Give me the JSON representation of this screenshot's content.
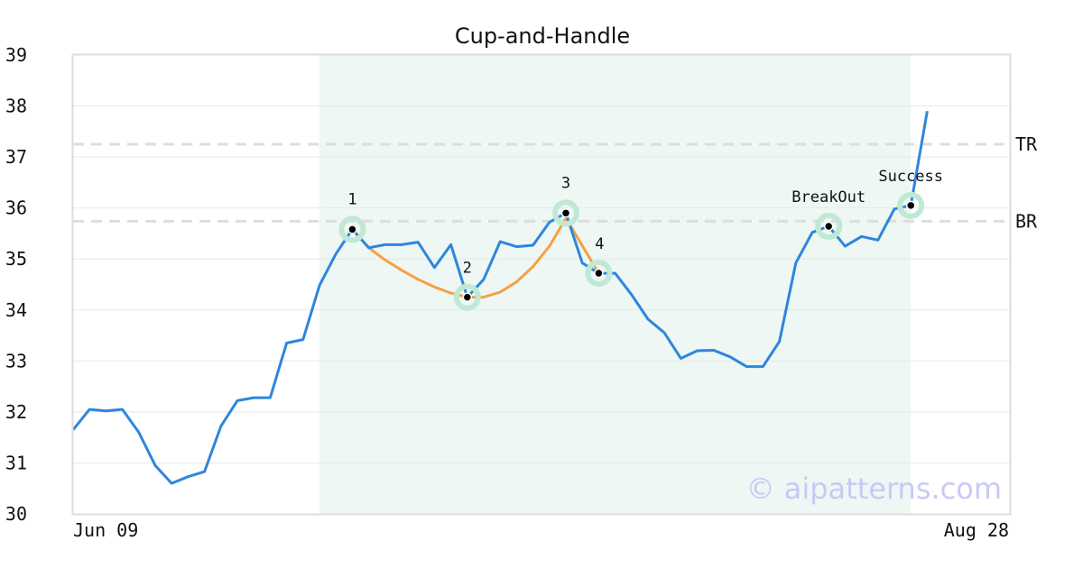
{
  "chart_data": {
    "type": "line",
    "title": "Cup-and-Handle",
    "xlabel": "",
    "ylabel": "",
    "x_tick_labels": [
      "Jun 09",
      "Aug 28"
    ],
    "y_ticks": [
      30,
      31,
      32,
      33,
      34,
      35,
      36,
      37,
      38,
      39
    ],
    "ylim": [
      30,
      39
    ],
    "grid": "horizontal",
    "series": [
      {
        "color": "#2e86de",
        "values": [
          31.65,
          32.05,
          32.02,
          32.05,
          31.6,
          30.95,
          30.6,
          30.73,
          30.83,
          31.72,
          32.22,
          32.28,
          32.28,
          33.35,
          33.42,
          34.48,
          35.1,
          35.58,
          35.22,
          35.28,
          35.28,
          35.33,
          34.83,
          35.28,
          34.25,
          34.6,
          35.34,
          35.24,
          35.27,
          35.72,
          35.9,
          34.92,
          34.72,
          34.72,
          34.3,
          33.82,
          33.55,
          33.05,
          33.2,
          33.21,
          33.08,
          32.89,
          32.89,
          33.38,
          34.92,
          35.52,
          35.64,
          35.25,
          35.44,
          35.37,
          35.98,
          36.05,
          37.9
        ]
      }
    ],
    "pattern_curve": {
      "color": "#f5a142",
      "points": [
        [
          17,
          35.58
        ],
        [
          18,
          35.22
        ],
        [
          19,
          34.98
        ],
        [
          20,
          34.78
        ],
        [
          21,
          34.6
        ],
        [
          22,
          34.45
        ],
        [
          23,
          34.33
        ],
        [
          24,
          34.25
        ],
        [
          25,
          34.25
        ],
        [
          26,
          34.35
        ],
        [
          27,
          34.55
        ],
        [
          28,
          34.85
        ],
        [
          29,
          35.25
        ],
        [
          30,
          35.8
        ],
        [
          32,
          34.72
        ]
      ]
    },
    "highlight_range": [
      15,
      51
    ],
    "levels": [
      {
        "label": "TR",
        "value": 37.25
      },
      {
        "label": "BR",
        "value": 35.74
      }
    ],
    "markers": [
      {
        "label": "1",
        "index": 17,
        "value": 35.58
      },
      {
        "label": "2",
        "index": 24,
        "value": 34.25
      },
      {
        "label": "3",
        "index": 30,
        "value": 35.9
      },
      {
        "label": "4",
        "index": 32,
        "value": 34.72
      },
      {
        "label": "BreakOut",
        "index": 46,
        "value": 35.64
      },
      {
        "label": "Success",
        "index": 51,
        "value": 36.05
      }
    ]
  },
  "watermark": "© aipatterns.com",
  "colors": {
    "line": "#2e86de",
    "curve": "#f5a142",
    "highlight": "#eef7f3",
    "marker_halo": "#bfe9d4",
    "grid": "#e8e8e8",
    "level_line": "#dddddd",
    "frame": "#dddddd"
  }
}
